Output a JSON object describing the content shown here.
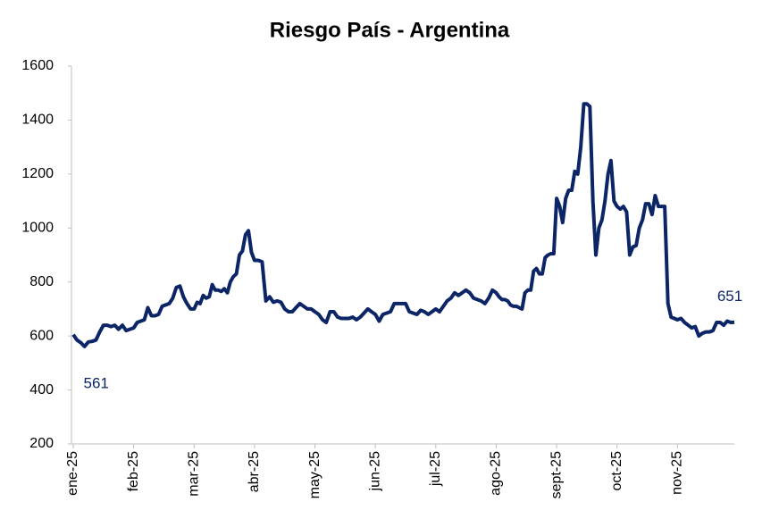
{
  "chart_data": {
    "type": "line",
    "title": "Riesgo País - Argentina",
    "categories": [
      "ene-25",
      null,
      null,
      null,
      null,
      null,
      null,
      null,
      null,
      null,
      null,
      null,
      null,
      null,
      null,
      null,
      "feb-25",
      null,
      null,
      null,
      null,
      null,
      null,
      null,
      null,
      null,
      null,
      null,
      null,
      null,
      null,
      null,
      null,
      "mar-25",
      null,
      null,
      null,
      null,
      null,
      null,
      null,
      null,
      null,
      null,
      null,
      null,
      null,
      null,
      null,
      null,
      null,
      null,
      null,
      "abr-25",
      null,
      null,
      null,
      null,
      null,
      null,
      null,
      null,
      null,
      null,
      null,
      null,
      null,
      null,
      null,
      "may-25",
      null,
      null,
      null,
      null,
      null,
      null,
      null,
      null,
      null,
      null,
      null,
      null,
      null,
      null,
      null,
      "jun-25",
      null,
      null,
      null,
      null,
      null,
      null,
      null,
      null,
      null,
      null,
      null,
      null,
      null,
      null,
      null,
      "jul-25",
      null,
      null,
      null,
      null,
      null,
      null,
      null,
      null,
      null,
      null,
      null,
      null,
      null,
      null,
      null,
      "ago-25",
      null,
      null,
      null,
      null,
      null,
      null,
      null,
      null,
      null,
      null,
      null,
      null,
      null,
      null,
      null,
      null,
      null,
      null,
      null,
      null,
      "sept-25",
      null,
      null,
      null,
      null,
      null,
      null,
      null,
      null,
      null,
      null,
      null,
      null,
      null,
      null,
      null,
      null,
      null,
      null,
      null,
      "oct-25",
      null,
      null,
      null,
      null,
      null,
      null,
      null,
      null,
      null,
      null,
      null,
      null,
      null,
      null,
      null,
      null,
      null,
      null,
      "nov-25",
      null,
      null,
      null,
      null,
      null,
      null,
      null,
      null,
      null,
      null,
      null,
      null,
      null,
      null,
      null,
      null
    ],
    "series": [
      {
        "name": "Riesgo País",
        "color": "#0b2566",
        "values": [
          605,
          585,
          575,
          561,
          578,
          580,
          585,
          615,
          640,
          640,
          635,
          640,
          625,
          640,
          620,
          625,
          630,
          650,
          655,
          660,
          705,
          675,
          675,
          680,
          710,
          715,
          720,
          740,
          780,
          785,
          745,
          720,
          700,
          700,
          725,
          720,
          750,
          740,
          745,
          790,
          770,
          770,
          765,
          775,
          760,
          800,
          820,
          830,
          900,
          915,
          975,
          990,
          910,
          880,
          880,
          875,
          730,
          745,
          725,
          730,
          725,
          700,
          690,
          690,
          705,
          720,
          710,
          700,
          700,
          690,
          680,
          660,
          650,
          690,
          690,
          670,
          665,
          665,
          665,
          670,
          660,
          670,
          685,
          700,
          690,
          680,
          655,
          680,
          685,
          690,
          720,
          720,
          720,
          720,
          690,
          685,
          680,
          695,
          690,
          680,
          690,
          700,
          690,
          710,
          730,
          740,
          760,
          750,
          760,
          770,
          760,
          740,
          735,
          730,
          720,
          740,
          770,
          760,
          745,
          735,
          735,
          730,
          715,
          710,
          710,
          705,
          700,
          760,
          770,
          770,
          840,
          850,
          830,
          830,
          890,
          900,
          905,
          905,
          1110,
          1080,
          1020,
          1110,
          1140,
          1140,
          1210,
          1200,
          1300,
          1460,
          1460,
          1450,
          1100,
          900,
          1000,
          1030,
          1100,
          1200,
          1250,
          1100,
          1080,
          1070,
          1080,
          1060,
          900,
          930,
          935,
          1000,
          1030,
          1090,
          1090,
          1050,
          1120,
          1080,
          1080,
          1080,
          720,
          670,
          665,
          660,
          665,
          650,
          640,
          630,
          635,
          600,
          610,
          615,
          615,
          620,
          650,
          650,
          640,
          655,
          650,
          651
        ]
      }
    ],
    "ylim": [
      200,
      1600
    ],
    "yticks": [
      200,
      400,
      600,
      800,
      1000,
      1200,
      1400,
      1600
    ],
    "grid": false
  }
}
